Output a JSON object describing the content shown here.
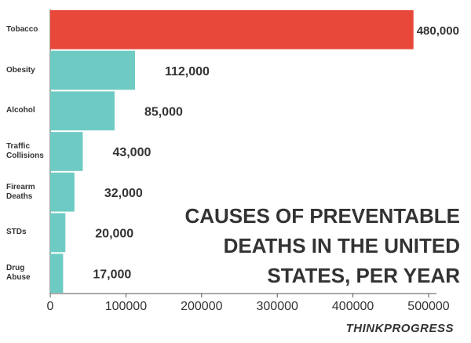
{
  "chart_data": {
    "type": "hbar",
    "title": "CAUSES OF PREVENTABLE DEATHS IN THE UNITED STATES, PER YEAR",
    "source": "THINKPROGRESS",
    "categories": [
      "Tobacco",
      "Obesity",
      "Alcohol",
      "Traffic Collisions",
      "Firearm Deaths",
      "STDs",
      "Drug Abuse"
    ],
    "values": [
      480000,
      112000,
      85000,
      43000,
      32000,
      20000,
      17000
    ],
    "value_labels": [
      "480,000",
      "112,000",
      "85,000",
      "43,000",
      "32,000",
      "20,000",
      "17,000"
    ],
    "colors": [
      "#e8483a",
      "#6ecbc3",
      "#6ecbc3",
      "#6ecbc3",
      "#6ecbc3",
      "#6ecbc3",
      "#6ecbc3"
    ],
    "xlim": [
      0,
      500000
    ],
    "xticks": [
      0,
      100000,
      200000,
      300000,
      400000,
      500000
    ]
  }
}
